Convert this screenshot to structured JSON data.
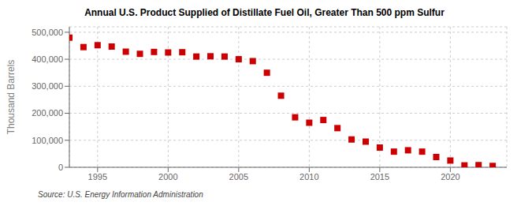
{
  "chart_data": {
    "type": "scatter",
    "title": "Annual U.S. Product Supplied of Distillate Fuel Oil, Greater Than 500 ppm Sulfur",
    "ylabel": "Thousand Barrels",
    "annotation": "Source: U.S. Energy Information Administration",
    "x": [
      1993,
      1994,
      1995,
      1996,
      1997,
      1998,
      1999,
      2000,
      2001,
      2002,
      2003,
      2004,
      2005,
      2006,
      2007,
      2008,
      2009,
      2010,
      2011,
      2012,
      2013,
      2014,
      2015,
      2016,
      2017,
      2018,
      2019,
      2020,
      2021,
      2022,
      2023
    ],
    "values": [
      480000,
      445000,
      452000,
      447000,
      428000,
      420000,
      427000,
      425000,
      426000,
      410000,
      411000,
      410000,
      400000,
      393000,
      350000,
      265000,
      185000,
      165000,
      175000,
      145000,
      103000,
      95000,
      73000,
      58000,
      63000,
      58000,
      38000,
      25000,
      7000,
      8000,
      5000
    ],
    "color": "#cc0000",
    "marker": "square",
    "xlim": [
      1993,
      2024
    ],
    "ylim": [
      0,
      520000
    ],
    "xticks": [
      1995,
      2000,
      2005,
      2010,
      2015,
      2020
    ],
    "yticks": [
      0,
      {
        "value": 100000,
        "label": "100,000"
      },
      {
        "value": 200000,
        "label": "200,000"
      },
      {
        "value": 300000,
        "label": "300,000"
      },
      {
        "value": 400000,
        "label": "400,000"
      },
      {
        "value": 500000,
        "label": "500,000"
      }
    ],
    "grid": true
  }
}
